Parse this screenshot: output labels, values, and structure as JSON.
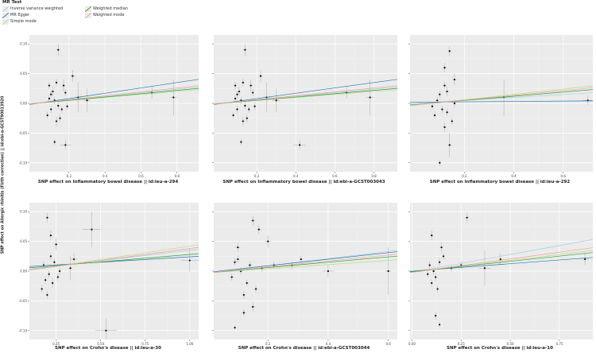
{
  "legend": {
    "title": "MR Test",
    "items": [
      {
        "label": "Inverse variance weighted",
        "color": "#a6cee3"
      },
      {
        "label": "MR Egger",
        "color": "#1f78b4"
      },
      {
        "label": "Simple mode",
        "color": "#b2df8a"
      },
      {
        "label": "Weighted median",
        "color": "#33a02c"
      },
      {
        "label": "Weighted mode",
        "color": "#fb9a99"
      }
    ]
  },
  "ylabel": "SNP effect on Allergic rhinitis (Firth correction) || id:ebi-a-GCST90013920",
  "chart_data": [
    {
      "type": "scatter",
      "xlabel": "SNP effect on Inflammatory bowel disease || id:ieu-a-294",
      "xlim": [
        -0.02,
        0.92
      ],
      "ylim": [
        -0.115,
        0.115
      ],
      "xticks": [
        0.2,
        0.4,
        0.6,
        0.8
      ],
      "xtick_labels": [
        "0.2",
        "0.4",
        "0.6",
        "0.8"
      ],
      "yticks": [
        -0.1,
        -0.05,
        0,
        0.05,
        0.1
      ],
      "ytick_labels": [
        "-0.10",
        "-0.05",
        "0.00",
        "0.05",
        "0.10"
      ],
      "show_yticklabels": true,
      "lines": [
        {
          "method": "Inverse variance weighted",
          "slope": 0.03,
          "intercept": 0
        },
        {
          "method": "MR Egger",
          "slope": 0.045,
          "intercept": -0.001
        },
        {
          "method": "Simple mode",
          "slope": 0.025,
          "intercept": 0.0
        },
        {
          "method": "Weighted median",
          "slope": 0.028,
          "intercept": -0.0005
        },
        {
          "method": "Weighted mode",
          "slope": 0.033,
          "intercept": -0.0005
        }
      ],
      "points": [
        [
          0.14,
          0.09,
          0.01,
          0.01
        ],
        [
          0.22,
          0.046,
          0.012,
          0.01
        ],
        [
          0.25,
          0.01,
          0.02,
          0.025
        ],
        [
          0.3,
          0.005,
          0.02,
          0.02
        ],
        [
          0.18,
          -0.07,
          0.03,
          0.008
        ],
        [
          0.78,
          0.01,
          0.02,
          0.03
        ],
        [
          0.66,
          0.018,
          0.02,
          0.01
        ],
        [
          0.12,
          -0.065,
          0.005,
          0.005
        ],
        [
          0.13,
          -0.03,
          0.008,
          0.008
        ],
        [
          0.15,
          -0.025,
          0.007,
          0.007
        ],
        [
          0.17,
          0.03,
          0.01,
          0.01
        ],
        [
          0.11,
          0.02,
          0.008,
          0.008
        ],
        [
          0.09,
          0.03,
          0.006,
          0.006
        ],
        [
          0.1,
          0.015,
          0.006,
          0.006
        ],
        [
          0.13,
          0.035,
          0.008,
          0.006
        ],
        [
          0.08,
          -0.02,
          0.006,
          0.006
        ],
        [
          0.16,
          -0.01,
          0.006,
          0.006
        ],
        [
          0.12,
          0.005,
          0.006,
          0.006
        ],
        [
          0.14,
          -0.004,
          0.006,
          0.006
        ],
        [
          0.19,
          -0.005,
          0.006,
          0.006
        ],
        [
          0.18,
          0.018,
          0.006,
          0.006
        ],
        [
          0.1,
          -0.01,
          0.006,
          0.006
        ],
        [
          0.09,
          0.008,
          0.006,
          0.006
        ]
      ]
    },
    {
      "type": "scatter",
      "xlabel": "SNP effect on Inflammatory bowel disease || id:ebi-a-GCST003043",
      "xlim": [
        -0.02,
        0.92
      ],
      "ylim": [
        -0.115,
        0.115
      ],
      "xticks": [
        0.2,
        0.4,
        0.6,
        0.8
      ],
      "xtick_labels": [
        "0.2",
        "0.4",
        "0.6",
        "0.8"
      ],
      "yticks": [
        -0.1,
        -0.05,
        0,
        0.05,
        0.1
      ],
      "ytick_labels": [
        "",
        "",
        "",
        "",
        ""
      ],
      "show_yticklabels": false,
      "lines": [
        {
          "method": "Inverse variance weighted",
          "slope": 0.03,
          "intercept": 0
        },
        {
          "method": "MR Egger",
          "slope": 0.045,
          "intercept": -0.001
        },
        {
          "method": "Simple mode",
          "slope": 0.025,
          "intercept": 0.0
        },
        {
          "method": "Weighted median",
          "slope": 0.028,
          "intercept": -0.0005
        },
        {
          "method": "Weighted mode",
          "slope": 0.033,
          "intercept": -0.0005
        }
      ],
      "points": [
        [
          0.14,
          0.09,
          0.01,
          0.01
        ],
        [
          0.22,
          0.046,
          0.012,
          0.01
        ],
        [
          0.25,
          0.01,
          0.02,
          0.025
        ],
        [
          0.3,
          0.005,
          0.02,
          0.02
        ],
        [
          0.42,
          -0.07,
          0.03,
          0.008
        ],
        [
          0.78,
          0.01,
          0.02,
          0.03
        ],
        [
          0.66,
          0.018,
          0.02,
          0.01
        ],
        [
          0.12,
          -0.065,
          0.005,
          0.005
        ],
        [
          0.13,
          -0.03,
          0.008,
          0.008
        ],
        [
          0.15,
          -0.025,
          0.007,
          0.007
        ],
        [
          0.17,
          0.03,
          0.01,
          0.01
        ],
        [
          0.11,
          0.02,
          0.008,
          0.008
        ],
        [
          0.09,
          0.03,
          0.006,
          0.006
        ],
        [
          0.1,
          0.015,
          0.006,
          0.006
        ],
        [
          0.13,
          0.035,
          0.008,
          0.006
        ],
        [
          0.08,
          -0.02,
          0.006,
          0.006
        ],
        [
          0.16,
          -0.01,
          0.006,
          0.006
        ],
        [
          0.12,
          0.005,
          0.006,
          0.006
        ],
        [
          0.14,
          -0.004,
          0.006,
          0.006
        ],
        [
          0.19,
          -0.005,
          0.006,
          0.006
        ],
        [
          0.18,
          0.018,
          0.006,
          0.006
        ],
        [
          0.1,
          -0.01,
          0.006,
          0.006
        ],
        [
          0.09,
          0.008,
          0.006,
          0.006
        ]
      ]
    },
    {
      "type": "scatter",
      "xlabel": "SNP effect on Inflammatory bowel disease || id:ieu-a-292",
      "xlim": [
        -0.02,
        0.72
      ],
      "ylim": [
        -0.115,
        0.115
      ],
      "xticks": [
        0.2,
        0.4,
        0.6
      ],
      "xtick_labels": [
        "0.2",
        "0.4",
        "0.6"
      ],
      "yticks": [
        -0.1,
        -0.05,
        0,
        0.05,
        0.1
      ],
      "ytick_labels": [
        "",
        "",
        "",
        "",
        ""
      ],
      "show_yticklabels": false,
      "lines": [
        {
          "method": "Inverse variance weighted",
          "slope": 0.025,
          "intercept": 0
        },
        {
          "method": "MR Egger",
          "slope": 0.003,
          "intercept": 0.002
        },
        {
          "method": "Simple mode",
          "slope": 0.045,
          "intercept": -0.003
        },
        {
          "method": "Weighted median",
          "slope": 0.035,
          "intercept": -0.002
        },
        {
          "method": "Weighted mode",
          "slope": 0.04,
          "intercept": -0.0025
        }
      ],
      "points": [
        [
          0.14,
          0.088,
          0.008,
          0.008
        ],
        [
          0.12,
          0.06,
          0.008,
          0.008
        ],
        [
          0.16,
          0.04,
          0.01,
          0.01
        ],
        [
          0.14,
          -0.07,
          0.008,
          0.02
        ],
        [
          0.12,
          -0.04,
          0.008,
          0.008
        ],
        [
          0.1,
          -0.1,
          0.004,
          0.004
        ],
        [
          0.36,
          0.01,
          0.03,
          0.03
        ],
        [
          0.7,
          0.005,
          0.02,
          0.008
        ],
        [
          0.13,
          0.02,
          0.008,
          0.008
        ],
        [
          0.1,
          0.015,
          0.006,
          0.006
        ],
        [
          0.08,
          -0.02,
          0.006,
          0.006
        ],
        [
          0.15,
          -0.03,
          0.006,
          0.006
        ],
        [
          0.11,
          -0.01,
          0.006,
          0.006
        ],
        [
          0.09,
          0.005,
          0.006,
          0.006
        ],
        [
          0.16,
          0.0,
          0.006,
          0.006
        ],
        [
          0.12,
          0.03,
          0.006,
          0.006
        ],
        [
          0.07,
          -0.005,
          0.006,
          0.006
        ],
        [
          0.13,
          -0.015,
          0.006,
          0.006
        ]
      ]
    },
    {
      "type": "scatter",
      "xlabel": "SNP effect on Crohn's disease || id:ieu-a-30",
      "xlim": [
        0.1,
        1.05
      ],
      "ylim": [
        -0.115,
        0.115
      ],
      "xticks": [
        0.25,
        0.5,
        0.75,
        1.0
      ],
      "xtick_labels": [
        "0.25",
        "0.50",
        "0.75",
        "1.00"
      ],
      "yticks": [
        -0.1,
        -0.05,
        0,
        0.05,
        0.1
      ],
      "ytick_labels": [
        "-0.10",
        "-0.05",
        "0.00",
        "0.05",
        "0.10"
      ],
      "show_yticklabels": true,
      "lines": [
        {
          "method": "Inverse variance weighted",
          "slope": 0.035,
          "intercept": 0.0
        },
        {
          "method": "MR Egger",
          "slope": 0.018,
          "intercept": 0.006
        },
        {
          "method": "Simple mode",
          "slope": 0.045,
          "intercept": -0.003
        },
        {
          "method": "Weighted median",
          "slope": 0.025,
          "intercept": 0.003
        },
        {
          "method": "Weighted mode",
          "slope": 0.04,
          "intercept": -0.002
        }
      ],
      "points": [
        [
          0.2,
          0.09,
          0.008,
          0.008
        ],
        [
          0.22,
          0.06,
          0.008,
          0.008
        ],
        [
          0.25,
          0.045,
          0.01,
          0.01
        ],
        [
          0.45,
          0.07,
          0.05,
          0.03
        ],
        [
          0.53,
          -0.1,
          0.06,
          0.02
        ],
        [
          1.0,
          0.018,
          0.05,
          0.02
        ],
        [
          0.35,
          0.02,
          0.02,
          0.01
        ],
        [
          0.33,
          0.005,
          0.01,
          0.02
        ],
        [
          0.2,
          -0.04,
          0.006,
          0.006
        ],
        [
          0.23,
          -0.02,
          0.008,
          0.008
        ],
        [
          0.18,
          0.01,
          0.006,
          0.006
        ],
        [
          0.21,
          -0.005,
          0.006,
          0.006
        ],
        [
          0.24,
          0.015,
          0.006,
          0.006
        ],
        [
          0.19,
          -0.015,
          0.006,
          0.006
        ],
        [
          0.27,
          0.0,
          0.006,
          0.006
        ],
        [
          0.22,
          0.025,
          0.006,
          0.006
        ],
        [
          0.17,
          -0.03,
          0.006,
          0.006
        ],
        [
          0.26,
          -0.01,
          0.006,
          0.006
        ]
      ]
    },
    {
      "type": "scatter",
      "xlabel": "SNP effect on Crohn's disease || id:ebi-a-GCST003044",
      "xlim": [
        0.02,
        0.63
      ],
      "ylim": [
        -0.115,
        0.115
      ],
      "xticks": [
        0.2,
        0.4,
        0.6
      ],
      "xtick_labels": [
        "0.2",
        "0.4",
        "0.6"
      ],
      "yticks": [
        -0.1,
        -0.05,
        0,
        0.05,
        0.1
      ],
      "ytick_labels": [
        "",
        "",
        "",
        "",
        ""
      ],
      "show_yticklabels": false,
      "lines": [
        {
          "method": "Inverse variance weighted",
          "slope": 0.06,
          "intercept": -0.003
        },
        {
          "method": "MR Egger",
          "slope": 0.055,
          "intercept": -0.002
        },
        {
          "method": "Simple mode",
          "slope": 0.035,
          "intercept": -0.003
        },
        {
          "method": "Weighted median",
          "slope": 0.045,
          "intercept": -0.003
        },
        {
          "method": "Weighted mode",
          "slope": 0.05,
          "intercept": -0.003
        }
      ],
      "points": [
        [
          0.15,
          0.085,
          0.008,
          0.008
        ],
        [
          0.17,
          0.07,
          0.008,
          0.008
        ],
        [
          0.2,
          0.05,
          0.01,
          0.01
        ],
        [
          0.1,
          0.04,
          0.008,
          0.008
        ],
        [
          0.6,
          0.0,
          0.01,
          0.04
        ],
        [
          0.4,
          0.0,
          0.02,
          0.01
        ],
        [
          0.15,
          -0.06,
          0.008,
          0.008
        ],
        [
          0.09,
          -0.095,
          0.004,
          0.004
        ],
        [
          0.12,
          -0.07,
          0.006,
          0.006
        ],
        [
          0.1,
          0.02,
          0.006,
          0.006
        ],
        [
          0.13,
          -0.02,
          0.006,
          0.006
        ],
        [
          0.08,
          -0.01,
          0.006,
          0.006
        ],
        [
          0.14,
          0.01,
          0.006,
          0.006
        ],
        [
          0.11,
          0.0,
          0.006,
          0.006
        ],
        [
          0.16,
          -0.03,
          0.006,
          0.006
        ],
        [
          0.09,
          0.015,
          0.006,
          0.006
        ],
        [
          0.12,
          -0.04,
          0.006,
          0.006
        ],
        [
          0.18,
          0.005,
          0.006,
          0.006
        ],
        [
          0.22,
          0.01,
          0.006,
          0.006
        ],
        [
          0.28,
          0.01,
          0.006,
          0.006
        ],
        [
          0.31,
          0.02,
          0.006,
          0.006
        ]
      ]
    },
    {
      "type": "scatter",
      "xlabel": "SNP effect on Crohn's disease || id:ieu-a-10",
      "xlim": [
        -0.01,
        0.92
      ],
      "ylim": [
        -0.115,
        0.115
      ],
      "xticks": [
        0.0,
        0.25,
        0.5,
        0.75
      ],
      "xtick_labels": [
        "0.00",
        "0.25",
        "0.50",
        "0.75"
      ],
      "yticks": [
        -0.1,
        -0.05,
        0,
        0.05,
        0.1
      ],
      "ytick_labels": [
        "",
        "",
        "",
        "",
        ""
      ],
      "show_yticklabels": false,
      "lines": [
        {
          "method": "Inverse variance weighted",
          "slope": 0.06,
          "intercept": -0.002
        },
        {
          "method": "MR Egger",
          "slope": 0.025,
          "intercept": 0.0
        },
        {
          "method": "Simple mode",
          "slope": 0.04,
          "intercept": -0.002
        },
        {
          "method": "Weighted median",
          "slope": 0.035,
          "intercept": -0.001
        },
        {
          "method": "Weighted mode",
          "slope": 0.045,
          "intercept": -0.002
        }
      ],
      "points": [
        [
          0.28,
          0.09,
          0.01,
          0.008
        ],
        [
          0.1,
          0.06,
          0.008,
          0.008
        ],
        [
          0.15,
          0.04,
          0.008,
          0.008
        ],
        [
          0.12,
          -0.075,
          0.006,
          0.006
        ],
        [
          0.14,
          -0.09,
          0.004,
          0.004
        ],
        [
          0.37,
          0.005,
          0.03,
          0.03
        ],
        [
          0.45,
          0.02,
          0.01,
          0.01
        ],
        [
          0.88,
          0.02,
          0.02,
          0.01
        ],
        [
          0.1,
          -0.02,
          0.006,
          0.006
        ],
        [
          0.13,
          -0.03,
          0.006,
          0.006
        ],
        [
          0.09,
          0.01,
          0.006,
          0.006
        ],
        [
          0.11,
          0.0,
          0.006,
          0.006
        ],
        [
          0.14,
          0.015,
          0.006,
          0.006
        ],
        [
          0.12,
          -0.01,
          0.006,
          0.006
        ],
        [
          0.16,
          0.025,
          0.006,
          0.006
        ],
        [
          0.08,
          -0.005,
          0.006,
          0.006
        ],
        [
          0.25,
          0.01,
          0.01,
          0.006
        ],
        [
          0.2,
          0.005,
          0.006,
          0.006
        ]
      ]
    }
  ]
}
